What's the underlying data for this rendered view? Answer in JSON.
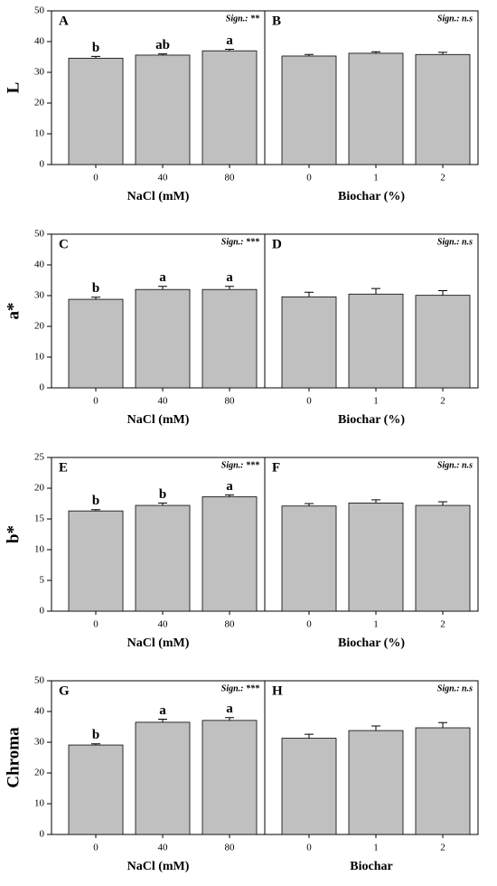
{
  "chart_data": [
    {
      "type": "bar",
      "panel": "A",
      "annotation": "Sign.: **",
      "ylabel": "L",
      "xlabel": "NaCl (mM)",
      "categories": [
        "0",
        "40",
        "80"
      ],
      "values": [
        34.6,
        35.6,
        37.0
      ],
      "errors": [
        0.6,
        0.4,
        0.5
      ],
      "letters": [
        "b",
        "ab",
        "a"
      ],
      "ylim": [
        0,
        50
      ],
      "yticks": [
        0,
        10,
        20,
        30,
        40,
        50
      ],
      "color": "#c0c0c0"
    },
    {
      "type": "bar",
      "panel": "B",
      "annotation": "Sign.: n.s",
      "xlabel": "Biochar (%)",
      "categories": [
        "0",
        "1",
        "2"
      ],
      "values": [
        35.3,
        36.2,
        35.8
      ],
      "errors": [
        0.5,
        0.5,
        0.7
      ],
      "ylim": [
        0,
        50
      ],
      "color": "#c0c0c0"
    },
    {
      "type": "bar",
      "panel": "C",
      "annotation": "Sign.: ***",
      "ylabel": "a*",
      "xlabel": "NaCl (mM)",
      "categories": [
        "0",
        "40",
        "80"
      ],
      "values": [
        28.8,
        32.0,
        32.0
      ],
      "errors": [
        0.7,
        1.0,
        1.0
      ],
      "letters": [
        "b",
        "a",
        "a"
      ],
      "ylim": [
        0,
        50
      ],
      "yticks": [
        0,
        10,
        20,
        30,
        40,
        50
      ],
      "color": "#c0c0c0"
    },
    {
      "type": "bar",
      "panel": "D",
      "annotation": "Sign.: n.s",
      "xlabel": "Biochar (%)",
      "categories": [
        "0",
        "1",
        "2"
      ],
      "values": [
        29.6,
        30.5,
        30.1
      ],
      "errors": [
        1.5,
        1.8,
        1.5
      ],
      "ylim": [
        0,
        50
      ],
      "color": "#c0c0c0"
    },
    {
      "type": "bar",
      "panel": "E",
      "annotation": "Sign.: ***",
      "ylabel": "b*",
      "xlabel": "NaCl (mM)",
      "categories": [
        "0",
        "40",
        "80"
      ],
      "values": [
        16.3,
        17.2,
        18.6
      ],
      "errors": [
        0.2,
        0.4,
        0.3
      ],
      "letters": [
        "b",
        "b",
        "a"
      ],
      "ylim": [
        0,
        25
      ],
      "yticks": [
        0,
        5,
        10,
        15,
        20,
        25
      ],
      "color": "#c0c0c0"
    },
    {
      "type": "bar",
      "panel": "F",
      "annotation": "Sign.: n.s",
      "xlabel": "Biochar (%)",
      "categories": [
        "0",
        "1",
        "2"
      ],
      "values": [
        17.1,
        17.6,
        17.2
      ],
      "errors": [
        0.4,
        0.5,
        0.6
      ],
      "ylim": [
        0,
        25
      ],
      "color": "#c0c0c0"
    },
    {
      "type": "bar",
      "panel": "G",
      "annotation": "Sign.: ***",
      "ylabel": "Chroma",
      "xlabel": "NaCl (mM)",
      "categories": [
        "0",
        "40",
        "80"
      ],
      "values": [
        29.1,
        36.5,
        37.1
      ],
      "errors": [
        0.4,
        1.0,
        0.9
      ],
      "letters": [
        "b",
        "a",
        "a"
      ],
      "ylim": [
        0,
        50
      ],
      "yticks": [
        0,
        10,
        20,
        30,
        40,
        50
      ],
      "color": "#c0c0c0"
    },
    {
      "type": "bar",
      "panel": "H",
      "annotation": "Sign.: n.s",
      "xlabel": "Biochar",
      "categories": [
        "0",
        "1",
        "2"
      ],
      "values": [
        31.3,
        33.8,
        34.7
      ],
      "errors": [
        1.3,
        1.5,
        1.7
      ],
      "ylim": [
        0,
        50
      ],
      "color": "#c0c0c0"
    }
  ]
}
